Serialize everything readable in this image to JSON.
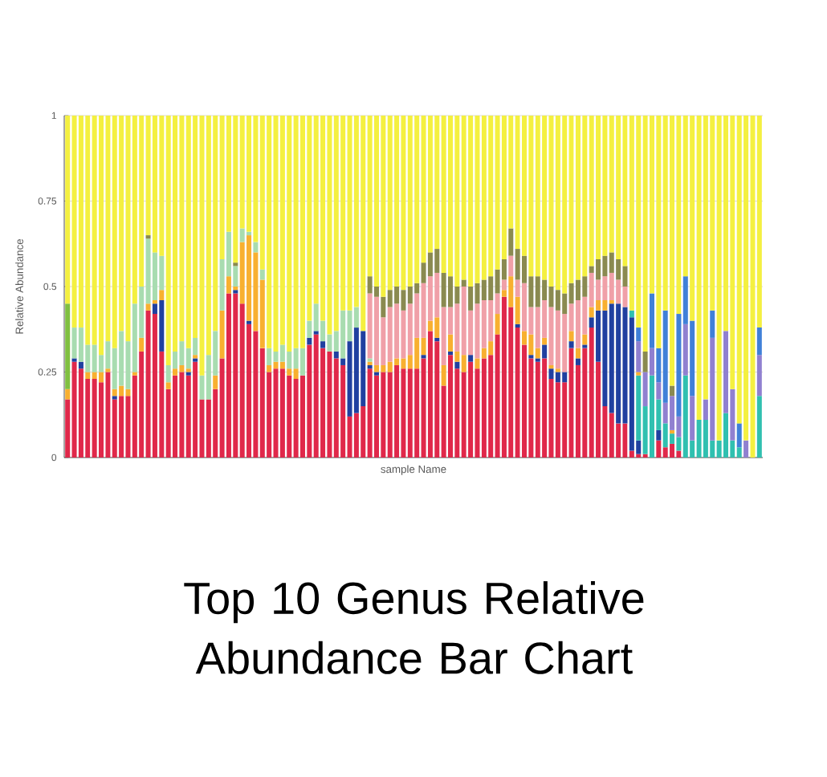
{
  "chart_data": {
    "type": "bar",
    "title": "Top 10 Genus Relative Abundance Bar Chart",
    "xlabel": "sample Name",
    "ylabel": "Relative Abundance",
    "categories": [
      null,
      null,
      null,
      null,
      null,
      null,
      null,
      null,
      null,
      null,
      null,
      null,
      null,
      null,
      null,
      null,
      null,
      null,
      null,
      null,
      null,
      null,
      null,
      null,
      null,
      null,
      null,
      null,
      null,
      null,
      null,
      null,
      null,
      null,
      null,
      null,
      null,
      null,
      null,
      null,
      null,
      null,
      null,
      null,
      null,
      null,
      null,
      null,
      null,
      null,
      null,
      null,
      null,
      null,
      null,
      null,
      null,
      null,
      null,
      null,
      null,
      null,
      null,
      null,
      null,
      null,
      null,
      null,
      null,
      null,
      null,
      null,
      null,
      null,
      null,
      null,
      null,
      null,
      null,
      null,
      null,
      null,
      null,
      null,
      null,
      null,
      null,
      null,
      null,
      null,
      null,
      null,
      null,
      null,
      null,
      null,
      null,
      null,
      null,
      null,
      null,
      null,
      null,
      null
    ],
    "stacked": true,
    "grid": "y",
    "ylim": [
      0,
      1
    ],
    "yticks": [
      0,
      0.25,
      0.5,
      0.75,
      1
    ],
    "series": [
      {
        "color": "#e0284a",
        "values": [
          0.17,
          0.28,
          0.26,
          0.23,
          0.23,
          0.22,
          0.25,
          0.17,
          0.18,
          0.18,
          0.24,
          0.31,
          0.43,
          0.42,
          0.31,
          0.2,
          0.24,
          0.25,
          0.24,
          0.28,
          0.17,
          0.17,
          0.2,
          0.29,
          0.48,
          0.48,
          0.45,
          0.39,
          0.37,
          0.32,
          0.25,
          0.26,
          0.26,
          0.24,
          0.23,
          0.24,
          0.33,
          0.36,
          0.32,
          0.31,
          0.29,
          0.27,
          0.12,
          0.13,
          0.15,
          0.26,
          0.24,
          0.25,
          0.25,
          0.27,
          0.26,
          0.26,
          0.26,
          0.29,
          0.37,
          0.34,
          0.21,
          0.3,
          0.26,
          0.25,
          0.28,
          0.26,
          0.29,
          0.3,
          0.36,
          0.47,
          0.44,
          0.38,
          0.33,
          0.29,
          0.28,
          0.29,
          0.23,
          0.22,
          0.22,
          0.32,
          0.27,
          0.32,
          0.38,
          0.28,
          0.15,
          0.13,
          0.1,
          0.1,
          0.02,
          0.01,
          0.01,
          0,
          0.05,
          0.03,
          0.04,
          0.02,
          0,
          0,
          0,
          0,
          0,
          0,
          0,
          0,
          0,
          0,
          0,
          0
        ]
      },
      {
        "color": "#2040a0",
        "values": [
          0,
          0.01,
          0.02,
          0,
          0,
          0,
          0,
          0.01,
          0,
          0,
          0,
          0,
          0,
          0.03,
          0.15,
          0,
          0,
          0,
          0.01,
          0.01,
          0,
          0,
          0,
          0,
          0,
          0.01,
          0,
          0.01,
          0,
          0,
          0,
          0,
          0,
          0,
          0,
          0,
          0.02,
          0.01,
          0.02,
          0,
          0.02,
          0.02,
          0.22,
          0.25,
          0.22,
          0.01,
          0.01,
          0,
          0,
          0,
          0,
          0,
          0,
          0.01,
          0,
          0.01,
          0,
          0.01,
          0.02,
          0,
          0.02,
          0,
          0,
          0,
          0,
          0,
          0,
          0.01,
          0,
          0.01,
          0.01,
          0.04,
          0.03,
          0.03,
          0.03,
          0.02,
          0.02,
          0.01,
          0.03,
          0.15,
          0.28,
          0.32,
          0.35,
          0.34,
          0.39,
          0.04,
          0,
          0,
          0.03,
          0,
          0,
          0,
          0,
          0,
          0,
          0,
          0,
          0,
          0,
          0,
          0,
          0,
          0,
          0
        ]
      },
      {
        "color": "#30c0b0",
        "values": [
          0,
          0,
          0,
          0,
          0,
          0,
          0,
          0,
          0,
          0,
          0,
          0,
          0,
          0,
          0,
          0,
          0,
          0,
          0,
          0,
          0,
          0,
          0,
          0,
          0,
          0,
          0,
          0,
          0,
          0,
          0,
          0,
          0,
          0,
          0,
          0,
          0,
          0,
          0,
          0,
          0,
          0,
          0,
          0,
          0,
          0,
          0,
          0,
          0,
          0,
          0,
          0,
          0,
          0,
          0,
          0,
          0,
          0,
          0,
          0,
          0,
          0,
          0,
          0,
          0,
          0,
          0,
          0,
          0,
          0,
          0,
          0,
          0,
          0,
          0,
          0,
          0,
          0,
          0,
          0,
          0,
          0,
          0,
          0,
          0.02,
          0.19,
          0.14,
          0.24,
          0.09,
          0.07,
          0.03,
          0.04,
          0.24,
          0.05,
          0.11,
          0.11,
          0.05,
          0.05,
          0.13,
          0.05,
          0.03,
          0,
          0,
          0.18
        ]
      },
      {
        "color": "#f8b030",
        "values": [
          0.03,
          0,
          0,
          0.02,
          0.02,
          0.03,
          0.01,
          0.02,
          0.03,
          0.02,
          0.01,
          0.04,
          0.02,
          0.01,
          0.03,
          0.02,
          0.02,
          0.02,
          0.01,
          0.01,
          0,
          0,
          0.04,
          0.14,
          0.05,
          0.01,
          0.18,
          0.25,
          0.23,
          0.2,
          0.02,
          0.02,
          0.02,
          0.02,
          0.03,
          0,
          0,
          0,
          0,
          0,
          0,
          0,
          0,
          0,
          0,
          0.01,
          0.02,
          0.02,
          0.03,
          0.02,
          0.03,
          0.04,
          0.09,
          0.05,
          0.03,
          0.06,
          0.06,
          0.05,
          0.03,
          0.05,
          0,
          0.03,
          0.03,
          0.04,
          0.06,
          0.02,
          0.09,
          0.08,
          0.04,
          0.06,
          0.03,
          0.02,
          0.01,
          0.01,
          0,
          0.03,
          0.03,
          0.03,
          0.03,
          0.03,
          0.03,
          0.01,
          0,
          0,
          0,
          0.01,
          0,
          0,
          0,
          0,
          0.01,
          0,
          0,
          0,
          0,
          0,
          0,
          0,
          0,
          0,
          0,
          0,
          0,
          0
        ]
      },
      {
        "color": "#9080d0",
        "values": [
          0,
          0,
          0,
          0,
          0,
          0,
          0,
          0,
          0,
          0,
          0,
          0,
          0,
          0,
          0,
          0,
          0,
          0,
          0,
          0,
          0,
          0,
          0,
          0,
          0,
          0,
          0,
          0,
          0,
          0,
          0,
          0,
          0,
          0,
          0,
          0,
          0,
          0,
          0,
          0,
          0,
          0,
          0,
          0,
          0,
          0,
          0,
          0,
          0,
          0,
          0,
          0,
          0,
          0,
          0,
          0,
          0,
          0,
          0,
          0,
          0,
          0,
          0,
          0,
          0,
          0,
          0,
          0,
          0,
          0,
          0,
          0,
          0,
          0,
          0,
          0,
          0,
          0,
          0,
          0,
          0,
          0,
          0,
          0,
          0,
          0.09,
          0.1,
          0.08,
          0.05,
          0.06,
          0.1,
          0.06,
          0.15,
          0.13,
          0,
          0.06,
          0.3,
          0,
          0.24,
          0.15,
          0,
          0.05,
          0,
          0.12
        ]
      },
      {
        "color": "#a8dcb0",
        "values": [
          0,
          0.09,
          0.1,
          0.08,
          0.08,
          0.05,
          0.08,
          0.12,
          0.16,
          0.14,
          0.2,
          0.15,
          0.19,
          0.14,
          0.1,
          0.05,
          0.05,
          0.07,
          0.06,
          0.05,
          0.07,
          0.13,
          0.13,
          0.15,
          0.13,
          0.06,
          0.04,
          0.01,
          0.03,
          0.03,
          0.05,
          0.03,
          0.05,
          0.05,
          0.06,
          0.08,
          0.05,
          0.08,
          0.06,
          0.05,
          0.06,
          0.14,
          0.09,
          0.06,
          0,
          0.01,
          0,
          0,
          0,
          0,
          0,
          0,
          0,
          0,
          0,
          0,
          0,
          0,
          0,
          0,
          0,
          0,
          0,
          0,
          0,
          0,
          0,
          0,
          0,
          0,
          0,
          0,
          0,
          0,
          0,
          0,
          0,
          0,
          0,
          0,
          0,
          0,
          0,
          0,
          0,
          0,
          0,
          0,
          0,
          0,
          0,
          0,
          0,
          0,
          0,
          0,
          0,
          0,
          0,
          0,
          0,
          0,
          0,
          0
        ]
      },
      {
        "color": "#f0a0a8",
        "values": [
          0,
          0,
          0,
          0,
          0,
          0,
          0,
          0,
          0,
          0,
          0,
          0,
          0,
          0,
          0,
          0,
          0,
          0,
          0,
          0,
          0,
          0,
          0,
          0,
          0,
          0,
          0,
          0,
          0,
          0,
          0,
          0,
          0,
          0,
          0,
          0,
          0,
          0,
          0,
          0,
          0,
          0,
          0,
          0,
          0,
          0.19,
          0.2,
          0.14,
          0.16,
          0.16,
          0.14,
          0.15,
          0.13,
          0.16,
          0.13,
          0.13,
          0.17,
          0.08,
          0.14,
          0.2,
          0.13,
          0.16,
          0.14,
          0.12,
          0.06,
          0.03,
          0.06,
          0.05,
          0.14,
          0.08,
          0.12,
          0.11,
          0.17,
          0.17,
          0.17,
          0.08,
          0.14,
          0.11,
          0.1,
          0.06,
          0.07,
          0.08,
          0.07,
          0.06,
          0,
          0,
          0,
          0,
          0,
          0,
          0,
          0,
          0,
          0,
          0,
          0,
          0,
          0,
          0,
          0,
          0,
          0,
          0,
          0
        ]
      },
      {
        "color": "#4080d8",
        "values": [
          0,
          0,
          0,
          0,
          0,
          0,
          0,
          0,
          0,
          0,
          0,
          0,
          0,
          0,
          0,
          0,
          0,
          0,
          0,
          0,
          0,
          0,
          0,
          0,
          0,
          0,
          0,
          0,
          0,
          0,
          0,
          0,
          0,
          0,
          0,
          0,
          0,
          0,
          0,
          0,
          0,
          0,
          0,
          0,
          0,
          0,
          0,
          0,
          0,
          0,
          0,
          0,
          0,
          0,
          0,
          0,
          0,
          0,
          0,
          0,
          0,
          0,
          0,
          0,
          0,
          0,
          0,
          0,
          0,
          0,
          0,
          0,
          0,
          0,
          0,
          0,
          0,
          0,
          0,
          0,
          0,
          0,
          0,
          0,
          0,
          0.04,
          0,
          0.16,
          0.1,
          0.27,
          0,
          0.3,
          0.14,
          0.22,
          0,
          0,
          0.08,
          0,
          0,
          0,
          0.07,
          0,
          0,
          0.08
        ]
      },
      {
        "color": "#80c040",
        "values": [
          0.25,
          0,
          0,
          0,
          0,
          0,
          0,
          0,
          0,
          0,
          0,
          0,
          0,
          0,
          0,
          0,
          0,
          0,
          0,
          0,
          0,
          0,
          0,
          0,
          0,
          0,
          0,
          0,
          0,
          0,
          0,
          0,
          0,
          0,
          0,
          0,
          0,
          0,
          0,
          0,
          0,
          0,
          0,
          0,
          0,
          0,
          0,
          0,
          0,
          0,
          0,
          0,
          0,
          0,
          0,
          0,
          0,
          0,
          0,
          0,
          0,
          0,
          0,
          0,
          0,
          0,
          0,
          0,
          0,
          0,
          0,
          0,
          0,
          0,
          0,
          0,
          0,
          0,
          0,
          0,
          0,
          0,
          0,
          0,
          0,
          0,
          0,
          0,
          0,
          0,
          0,
          0,
          0,
          0,
          0,
          0,
          0,
          0,
          0,
          0,
          0,
          0,
          0,
          0
        ]
      },
      {
        "color": "#8a8a50",
        "values": [
          0,
          0,
          0,
          0,
          0,
          0,
          0,
          0,
          0,
          0,
          0,
          0,
          0.01,
          0,
          0,
          0,
          0,
          0,
          0,
          0,
          0,
          0,
          0,
          0,
          0,
          0.01,
          0,
          0,
          0,
          0,
          0,
          0,
          0,
          0,
          0,
          0,
          0,
          0,
          0,
          0,
          0,
          0,
          0,
          0,
          0,
          0.05,
          0.03,
          0.06,
          0.05,
          0.05,
          0.06,
          0.05,
          0.03,
          0.06,
          0.07,
          0.07,
          0.1,
          0.09,
          0.05,
          0.02,
          0.07,
          0.06,
          0.06,
          0.07,
          0.07,
          0.06,
          0.08,
          0.09,
          0.08,
          0.09,
          0.09,
          0.06,
          0.06,
          0.06,
          0.06,
          0.06,
          0.06,
          0.06,
          0.02,
          0.06,
          0.06,
          0.06,
          0.06,
          0.06,
          0,
          0,
          0.06,
          0,
          0,
          0,
          0.03,
          0,
          0,
          0,
          0,
          0,
          0,
          0,
          0,
          0,
          0,
          0,
          0,
          0
        ]
      },
      {
        "color": "#f4f040",
        "values": [
          0.55,
          0.62,
          0.62,
          0.67,
          0.67,
          0.7,
          0.66,
          0.68,
          0.63,
          0.66,
          0.55,
          0.5,
          0.35,
          0.4,
          0.41,
          0.73,
          0.69,
          0.66,
          0.68,
          0.65,
          0.76,
          0.7,
          0.63,
          0.42,
          0.34,
          0.43,
          0.33,
          0.34,
          0.37,
          0.45,
          0.68,
          0.69,
          0.67,
          0.69,
          0.68,
          0.68,
          0.6,
          0.55,
          0.6,
          0.64,
          0.63,
          0.57,
          0.57,
          0.56,
          0.63,
          0.47,
          0.5,
          0.53,
          0.51,
          0.5,
          0.51,
          0.5,
          0.49,
          0.43,
          0.4,
          0.39,
          0.46,
          0.47,
          0.5,
          0.48,
          0.5,
          0.49,
          0.48,
          0.47,
          0.45,
          0.42,
          0.33,
          0.39,
          0.41,
          0.47,
          0.47,
          0.48,
          0.5,
          0.51,
          0.52,
          0.49,
          0.48,
          0.47,
          0.44,
          0.42,
          0.41,
          0.4,
          0.42,
          0.44,
          0.57,
          0.62,
          0.69,
          0.52,
          0.68,
          0.57,
          0.79,
          0.58,
          0.47,
          0.6,
          0.89,
          0.83,
          0.57,
          0.95,
          0.63,
          0.8,
          0.9,
          0.95,
          1,
          0.62
        ]
      }
    ]
  }
}
